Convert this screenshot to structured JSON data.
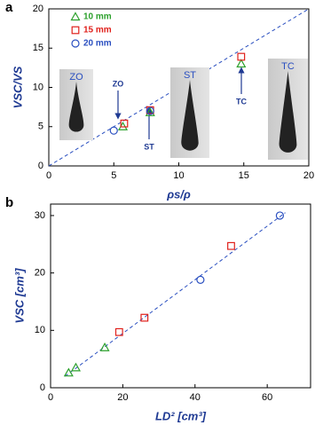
{
  "chart_data": [
    {
      "type": "scatter",
      "panel_label": "a",
      "x_label": "ρs/ρ",
      "y_label": "VSC/VS",
      "xlim": [
        0,
        20
      ],
      "ylim": [
        0,
        20
      ],
      "xticks": [
        0,
        5,
        10,
        15,
        20
      ],
      "yticks": [
        0,
        5,
        10,
        15,
        20
      ],
      "diagonal": true,
      "legend": "upper-left",
      "series": [
        {
          "name": "10 mm",
          "color": "#2ca02c",
          "marker": "triangle",
          "x": [
            5.7,
            7.8,
            14.8
          ],
          "values": [
            5.0,
            6.8,
            13.0
          ]
        },
        {
          "name": "15 mm",
          "color": "#e0201b",
          "marker": "square",
          "x": [
            5.8,
            7.8,
            14.8
          ],
          "values": [
            5.4,
            7.1,
            13.9
          ]
        },
        {
          "name": "20 mm",
          "color": "#2a4fc0",
          "marker": "circle",
          "x": [
            5.0,
            7.8
          ],
          "values": [
            4.5,
            7.0
          ]
        }
      ],
      "insets": [
        "ZO",
        "ST",
        "TC"
      ],
      "arrow_labels": [
        "ZO",
        "ST",
        "TC"
      ]
    },
    {
      "type": "scatter",
      "panel_label": "b",
      "x_label": "LD² [cm³]",
      "y_label": "VSC [cm³]",
      "xlim": [
        0,
        72
      ],
      "ylim": [
        0,
        32
      ],
      "xticks": [
        0,
        20,
        40,
        60
      ],
      "yticks": [
        0,
        10,
        20,
        30
      ],
      "trend_line": {
        "x": [
          4,
          65
        ],
        "y": [
          2,
          30.5
        ]
      },
      "series": [
        {
          "name": "10 mm",
          "color": "#2ca02c",
          "marker": "triangle",
          "x": [
            5,
            7,
            15
          ],
          "values": [
            2.6,
            3.5,
            7.0
          ]
        },
        {
          "name": "15 mm",
          "color": "#e0201b",
          "marker": "square",
          "x": [
            19,
            26,
            50
          ],
          "values": [
            9.7,
            12.2,
            24.7
          ]
        },
        {
          "name": "20 mm",
          "color": "#2a4fc0",
          "marker": "circle",
          "x": [
            41.5,
            63.5
          ],
          "values": [
            18.8,
            30.0
          ]
        }
      ]
    }
  ]
}
